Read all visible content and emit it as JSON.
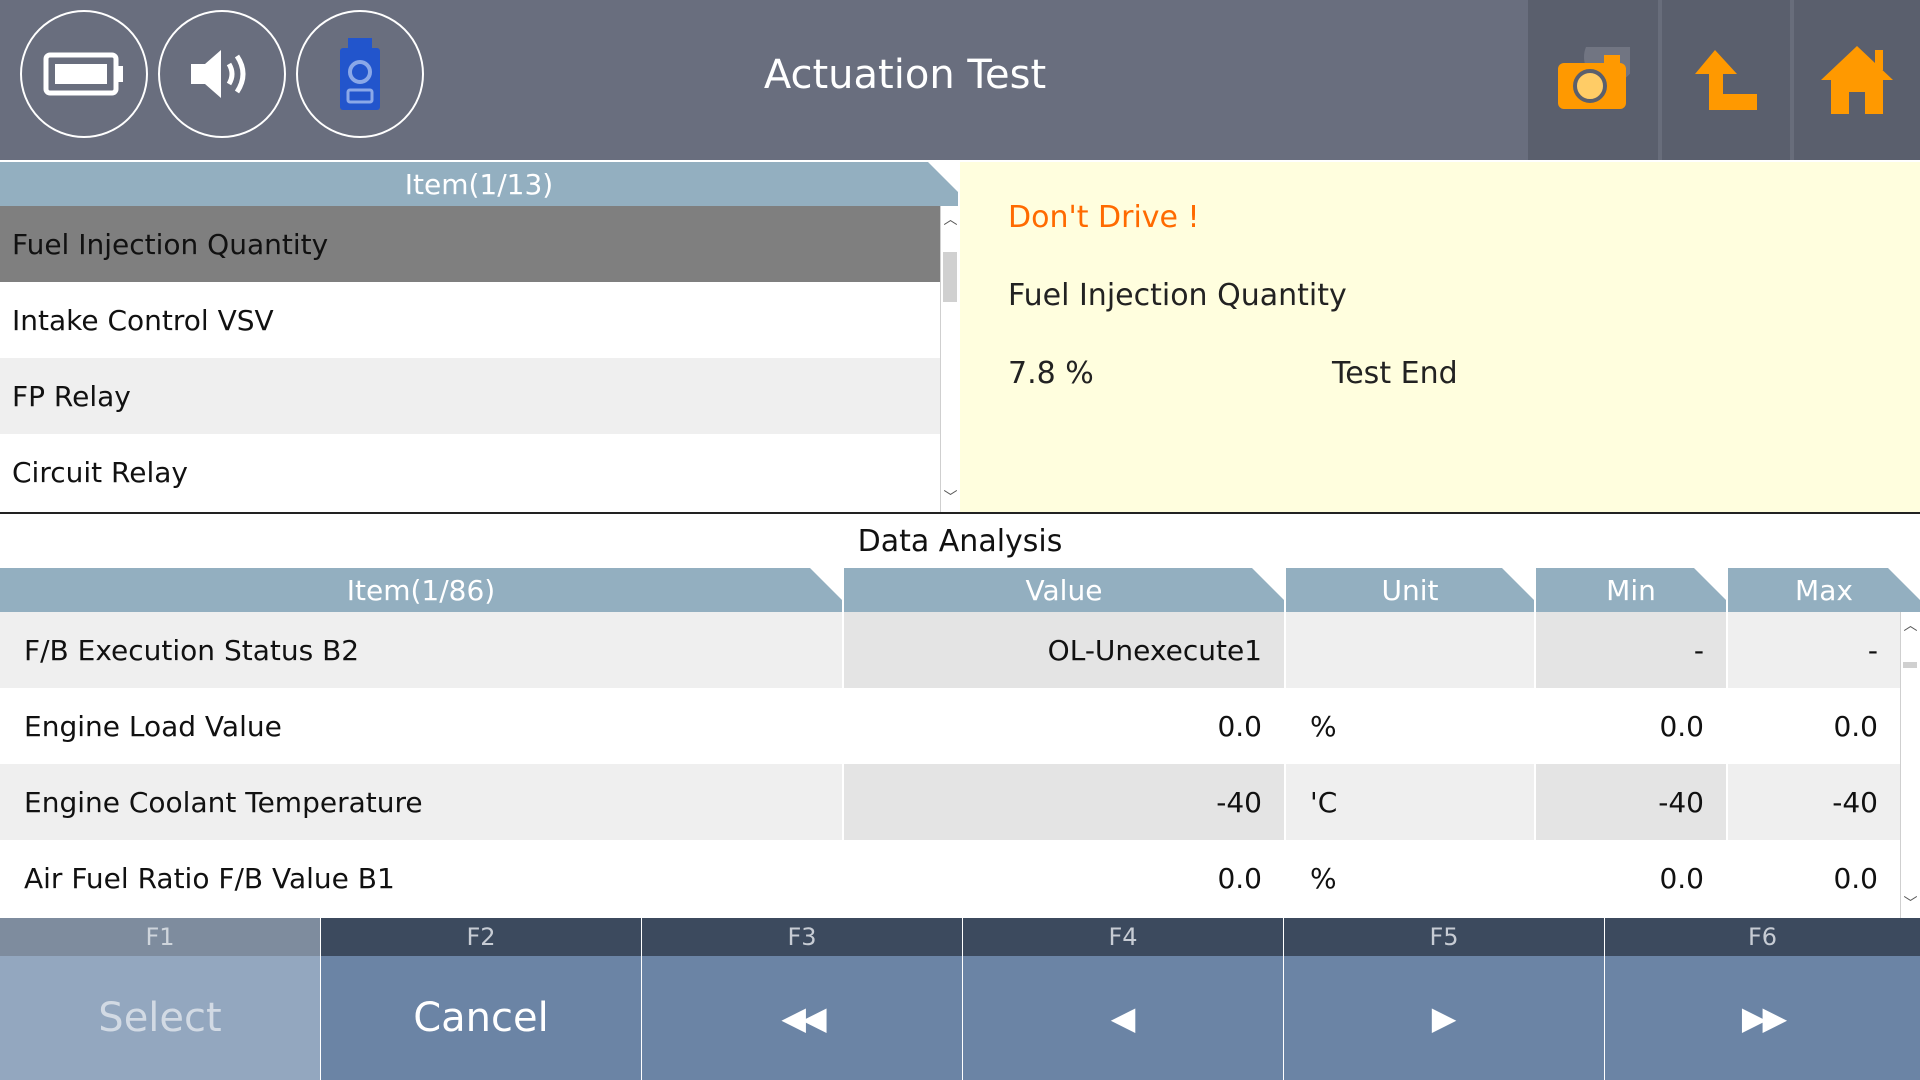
{
  "header": {
    "title": "Actuation Test",
    "left_icons": [
      "battery-icon",
      "speaker-icon",
      "vci-device-icon"
    ],
    "right_icons": [
      "camera-icon",
      "back-arrow-icon",
      "home-icon"
    ],
    "accent": "#ff9900"
  },
  "actuation_list": {
    "header": "Item(1/13)",
    "items": [
      "Fuel Injection Quantity",
      "Intake Control VSV",
      "FP Relay",
      "Circuit Relay"
    ],
    "selected_index": 0
  },
  "info_panel": {
    "warning": "Don't Drive !",
    "item": "Fuel Injection Quantity",
    "value": "7.8 %",
    "status": "Test End"
  },
  "data_analysis": {
    "title": "Data Analysis",
    "columns": {
      "item": "Item(1/86)",
      "value": "Value",
      "unit": "Unit",
      "min": "Min",
      "max": "Max"
    },
    "rows": [
      {
        "item": "F/B Execution Status B2",
        "value": "OL-Unexecute1",
        "unit": "",
        "min": "-",
        "max": "-"
      },
      {
        "item": "Engine Load Value",
        "value": "0.0",
        "unit": "%",
        "min": "0.0",
        "max": "0.0"
      },
      {
        "item": "Engine Coolant Temperature",
        "value": "-40",
        "unit": "'C",
        "min": "-40",
        "max": "-40"
      },
      {
        "item": "Air Fuel Ratio F/B Value B1",
        "value": "0.0",
        "unit": "%",
        "min": "0.0",
        "max": "0.0"
      }
    ]
  },
  "function_keys": [
    {
      "key": "F1",
      "label": "Select",
      "enabled": false
    },
    {
      "key": "F2",
      "label": "Cancel",
      "enabled": true
    },
    {
      "key": "F3",
      "label": "◀◀",
      "enabled": true
    },
    {
      "key": "F4",
      "label": "◀",
      "enabled": true
    },
    {
      "key": "F5",
      "label": "▶",
      "enabled": true
    },
    {
      "key": "F6",
      "label": "▶▶",
      "enabled": true
    }
  ],
  "colors": {
    "header_bg": "#696e7e",
    "table_header": "#93afc0",
    "selected_row": "#7f7f7f",
    "info_bg": "#fffede",
    "warning_text": "#ff6a00",
    "fkey_label_bg": "#3c4a5e",
    "fkey_body_bg": "#6b84a5"
  }
}
